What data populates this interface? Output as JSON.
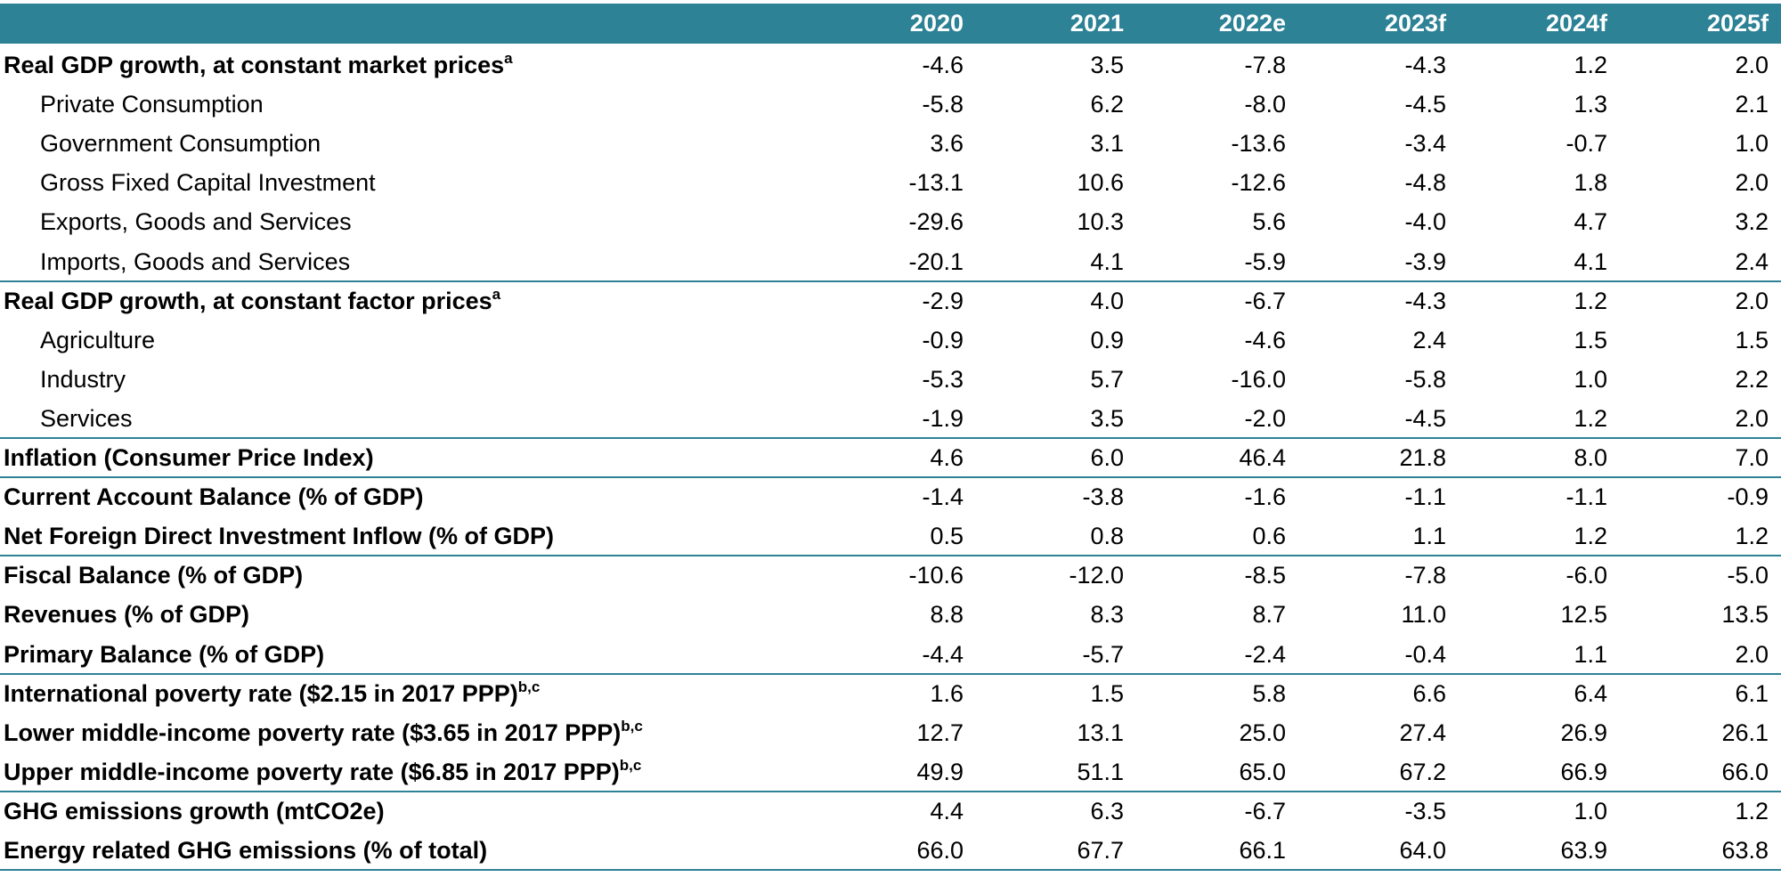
{
  "table": {
    "columns": [
      "2020",
      "2021",
      "2022e",
      "2023f",
      "2024f",
      "2025f"
    ],
    "groups": [
      {
        "rows": [
          {
            "label": "Real GDP growth, at constant market prices",
            "sup": "a",
            "bold": true,
            "values": [
              "-4.6",
              "3.5",
              "-7.8",
              "-4.3",
              "1.2",
              "2.0"
            ]
          },
          {
            "label": "Private Consumption",
            "bold": false,
            "values": [
              "-5.8",
              "6.2",
              "-8.0",
              "-4.5",
              "1.3",
              "2.1"
            ]
          },
          {
            "label": "Government Consumption",
            "bold": false,
            "values": [
              "3.6",
              "3.1",
              "-13.6",
              "-3.4",
              "-0.7",
              "1.0"
            ]
          },
          {
            "label": "Gross Fixed Capital Investment",
            "bold": false,
            "values": [
              "-13.1",
              "10.6",
              "-12.6",
              "-4.8",
              "1.8",
              "2.0"
            ]
          },
          {
            "label": "Exports, Goods and Services",
            "bold": false,
            "values": [
              "-29.6",
              "10.3",
              "5.6",
              "-4.0",
              "4.7",
              "3.2"
            ]
          },
          {
            "label": "Imports, Goods and Services",
            "bold": false,
            "values": [
              "-20.1",
              "4.1",
              "-5.9",
              "-3.9",
              "4.1",
              "2.4"
            ]
          }
        ]
      },
      {
        "rows": [
          {
            "label": "Real GDP growth, at constant factor prices",
            "sup": "a",
            "bold": true,
            "values": [
              "-2.9",
              "4.0",
              "-6.7",
              "-4.3",
              "1.2",
              "2.0"
            ]
          },
          {
            "label": "Agriculture",
            "bold": false,
            "values": [
              "-0.9",
              "0.9",
              "-4.6",
              "2.4",
              "1.5",
              "1.5"
            ]
          },
          {
            "label": "Industry",
            "bold": false,
            "values": [
              "-5.3",
              "5.7",
              "-16.0",
              "-5.8",
              "1.0",
              "2.2"
            ]
          },
          {
            "label": "Services",
            "bold": false,
            "values": [
              "-1.9",
              "3.5",
              "-2.0",
              "-4.5",
              "1.2",
              "2.0"
            ]
          }
        ]
      },
      {
        "rows": [
          {
            "label": "Inflation (Consumer Price Index)",
            "bold": true,
            "values": [
              "4.6",
              "6.0",
              "46.4",
              "21.8",
              "8.0",
              "7.0"
            ]
          }
        ]
      },
      {
        "rows": [
          {
            "label": "Current Account Balance (% of GDP)",
            "bold": true,
            "values": [
              "-1.4",
              "-3.8",
              "-1.6",
              "-1.1",
              "-1.1",
              "-0.9"
            ]
          },
          {
            "label": "Net Foreign Direct Investment Inflow (% of GDP)",
            "bold": true,
            "values": [
              "0.5",
              "0.8",
              "0.6",
              "1.1",
              "1.2",
              "1.2"
            ]
          }
        ]
      },
      {
        "rows": [
          {
            "label": "Fiscal Balance (% of GDP)",
            "bold": true,
            "values": [
              "-10.6",
              "-12.0",
              "-8.5",
              "-7.8",
              "-6.0",
              "-5.0"
            ]
          },
          {
            "label": "Revenues (% of GDP)",
            "bold": true,
            "values": [
              "8.8",
              "8.3",
              "8.7",
              "11.0",
              "12.5",
              "13.5"
            ]
          },
          {
            "label": "Primary Balance (% of GDP)",
            "bold": true,
            "values": [
              "-4.4",
              "-5.7",
              "-2.4",
              "-0.4",
              "1.1",
              "2.0"
            ]
          }
        ]
      },
      {
        "rows": [
          {
            "label": "International poverty rate ($2.15 in 2017 PPP)",
            "sup": "b,c",
            "bold": true,
            "values": [
              "1.6",
              "1.5",
              "5.8",
              "6.6",
              "6.4",
              "6.1"
            ]
          },
          {
            "label": "Lower middle-income poverty rate ($3.65 in 2017 PPP)",
            "sup": "b,c",
            "bold": true,
            "values": [
              "12.7",
              "13.1",
              "25.0",
              "27.4",
              "26.9",
              "26.1"
            ]
          },
          {
            "label": "Upper middle-income poverty rate ($6.85 in 2017 PPP)",
            "sup": "b,c",
            "bold": true,
            "values": [
              "49.9",
              "51.1",
              "65.0",
              "67.2",
              "66.9",
              "66.0"
            ]
          }
        ]
      },
      {
        "rows": [
          {
            "label": "GHG emissions growth (mtCO2e)",
            "bold": true,
            "values": [
              "4.4",
              "6.3",
              "-6.7",
              "-3.5",
              "1.0",
              "1.2"
            ]
          },
          {
            "label": "Energy related GHG emissions (% of total)",
            "bold": true,
            "values": [
              "66.0",
              "67.7",
              "66.1",
              "64.0",
              "63.9",
              "63.8"
            ]
          }
        ]
      }
    ]
  }
}
